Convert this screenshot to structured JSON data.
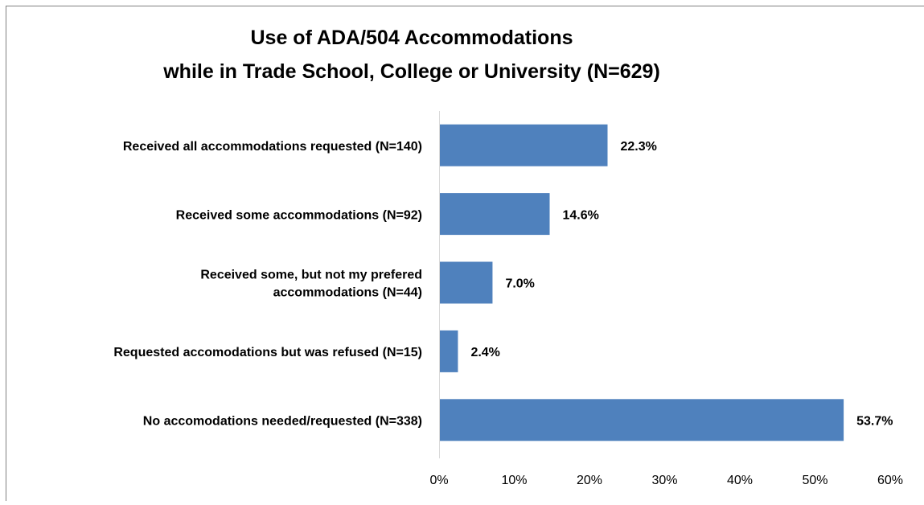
{
  "chart_data": {
    "type": "bar",
    "orientation": "horizontal",
    "title": "Use of ADA/504 Accommodations\nwhile in Trade School, College or University (N=629)",
    "categories": [
      "Received all accommodations requested (N=140)",
      "Received some accommodations (N=92)",
      "Received some, but not my prefered\naccommodations (N=44)",
      "Requested accomodations but was refused (N=15)",
      "No accomodations needed/requested (N=338)"
    ],
    "values": [
      22.3,
      14.6,
      7.0,
      2.4,
      53.7
    ],
    "value_labels": [
      "22.3%",
      "14.6%",
      "7.0%",
      "2.4%",
      "53.7%"
    ],
    "color": "#4f81bd",
    "xlim": [
      0,
      60
    ],
    "xticks": [
      {
        "value": 0,
        "label": "0%"
      },
      {
        "value": 10,
        "label": "10%"
      },
      {
        "value": 20,
        "label": "20%"
      },
      {
        "value": 30,
        "label": "30%"
      },
      {
        "value": 40,
        "label": "40%"
      },
      {
        "value": 50,
        "label": "50%"
      },
      {
        "value": 60,
        "label": "60%"
      }
    ],
    "grid": false
  }
}
